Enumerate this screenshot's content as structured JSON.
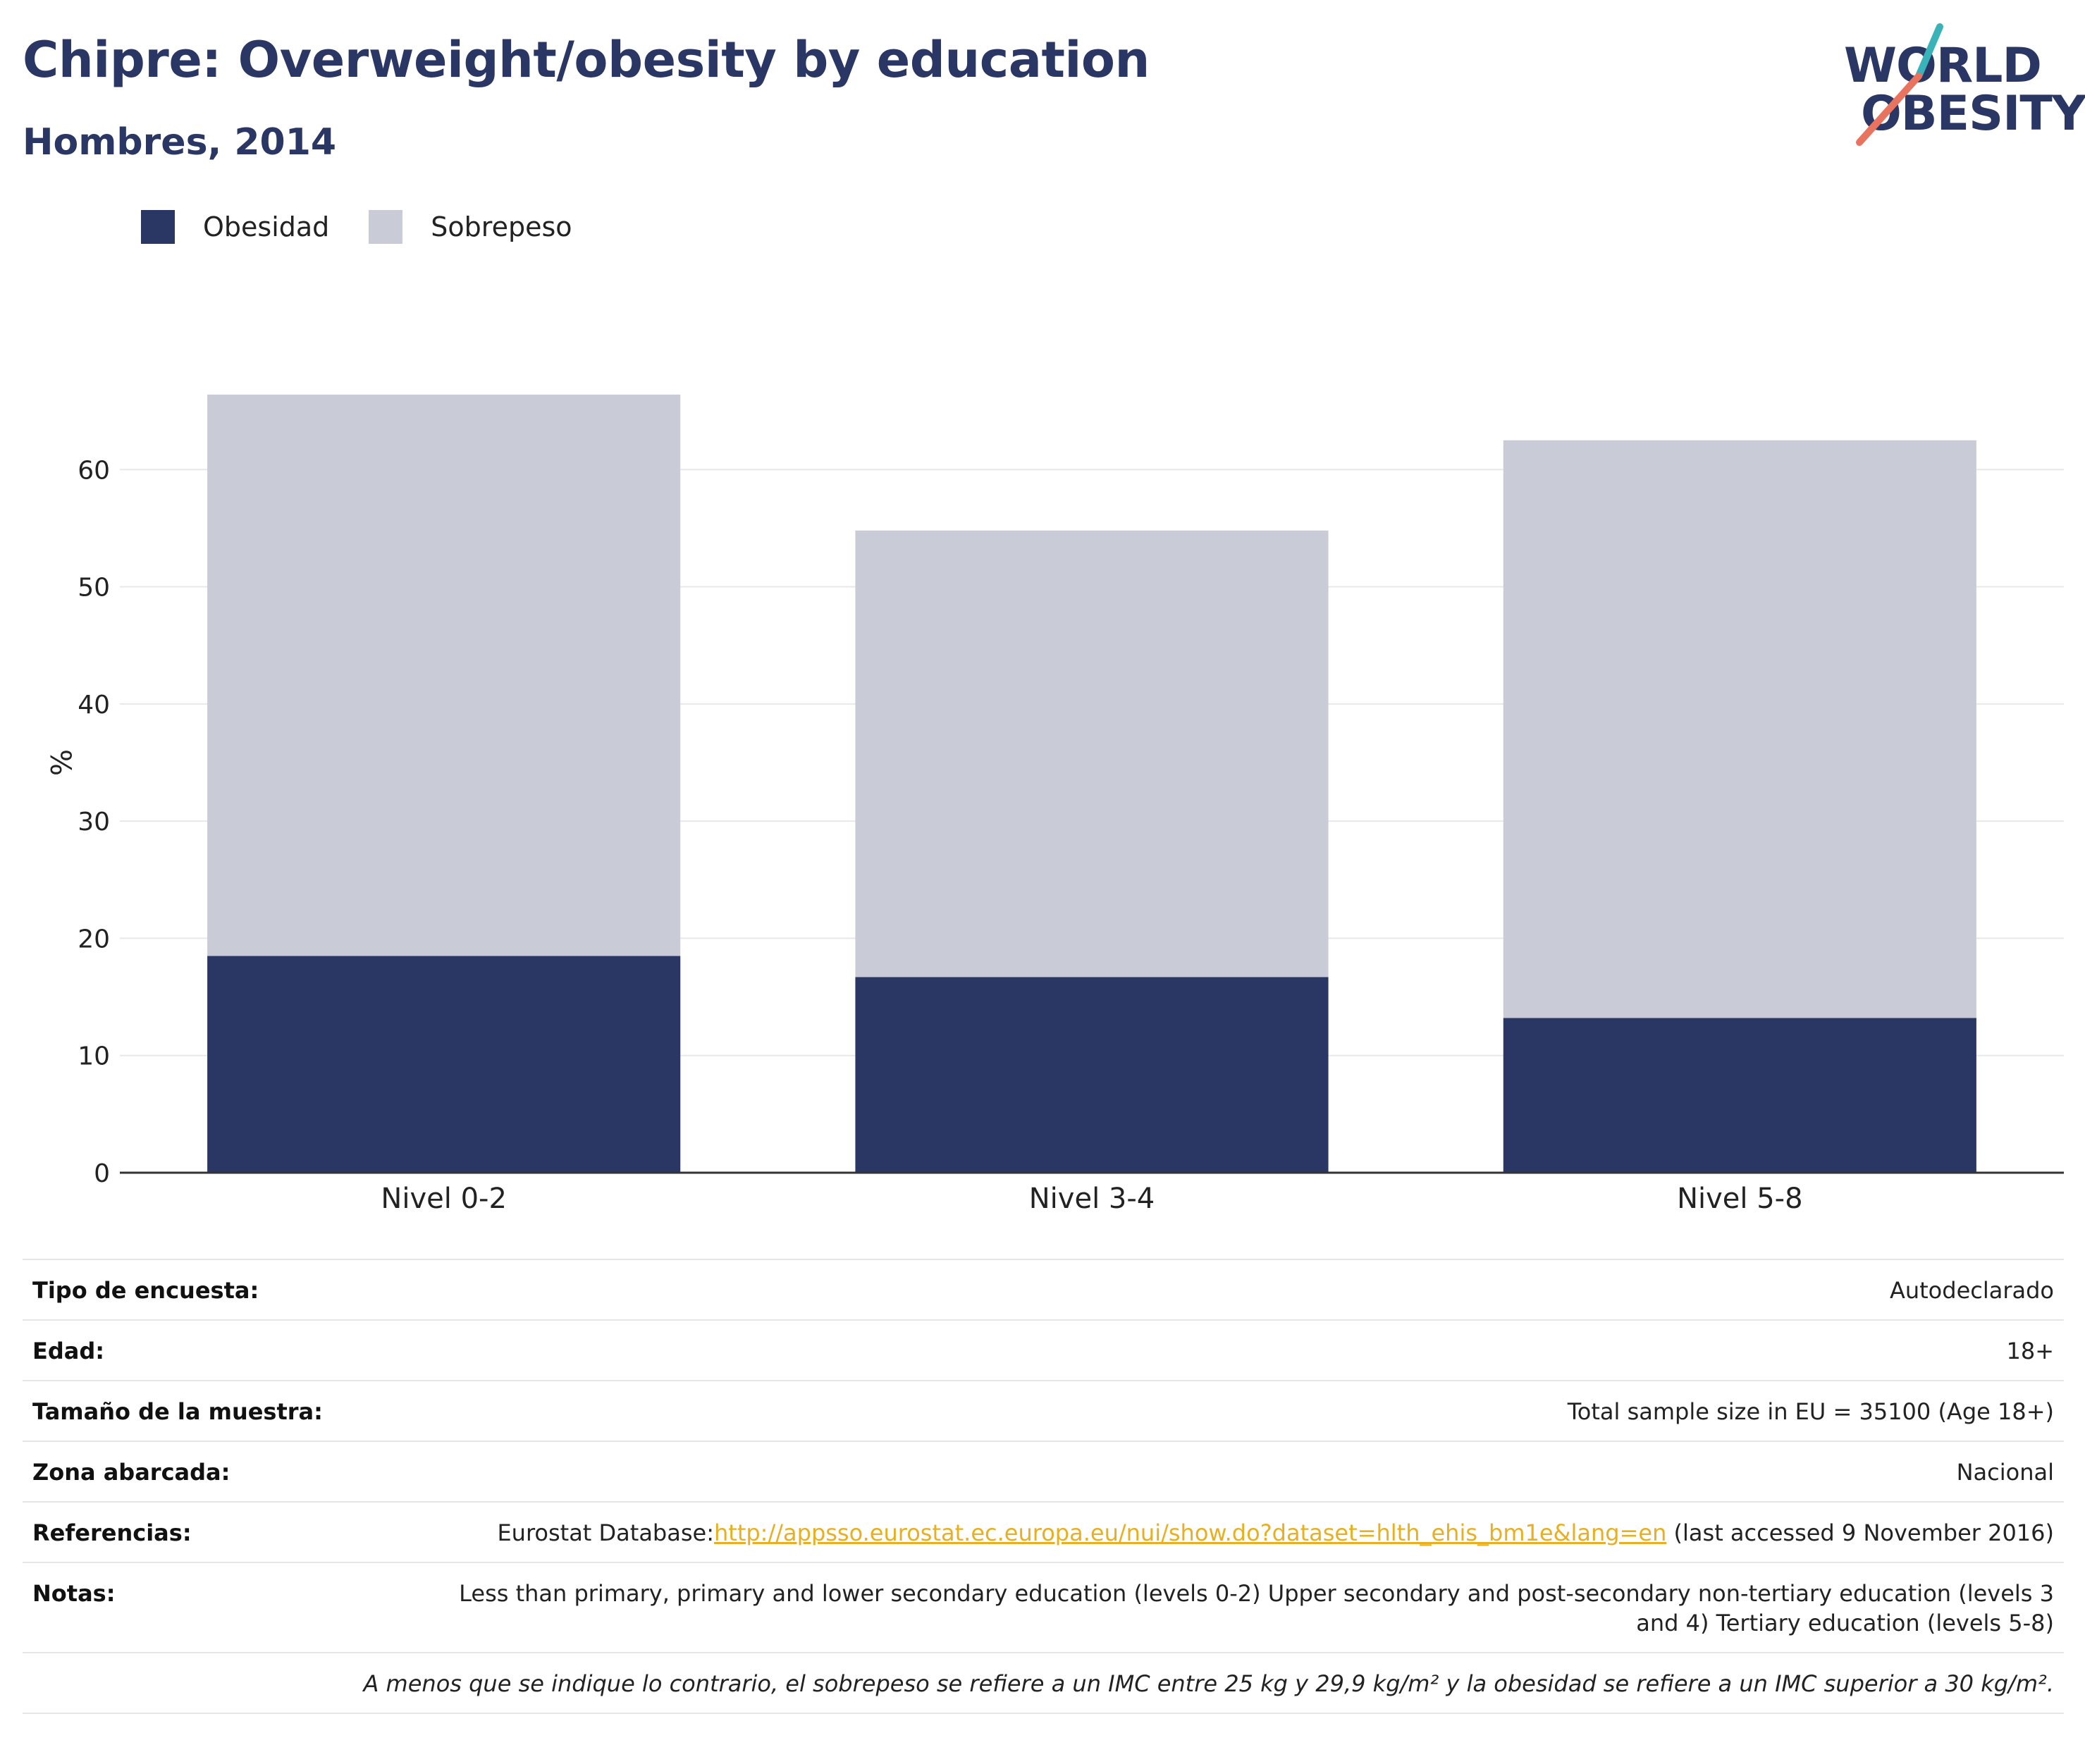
{
  "header": {
    "title": "Chipre: Overweight/obesity by education",
    "subtitle": "Hombres, 2014"
  },
  "logo": {
    "line1": "WORLD",
    "line2": "OBESITY",
    "accent_teal": "#3ab3b8",
    "accent_coral": "#e8735f"
  },
  "colors": {
    "obesity": "#2a3764",
    "overweight": "#c9cbd7",
    "axis": "#333333",
    "grid": "#e8e8e8"
  },
  "chart_data": {
    "type": "bar",
    "stacked": true,
    "title": "Chipre: Overweight/obesity by education",
    "subtitle": "Hombres, 2014",
    "ylabel": "%",
    "xlabel": "",
    "categories": [
      "Nivel 0-2",
      "Nivel 3-4",
      "Nivel 5-8"
    ],
    "series": [
      {
        "name": "Obesidad",
        "values": [
          18.5,
          16.7,
          13.2
        ]
      },
      {
        "name": "Sobrepeso",
        "values": [
          47.9,
          38.1,
          49.3
        ]
      }
    ],
    "ylim": [
      0,
      70
    ],
    "yticks": [
      0,
      10,
      20,
      30,
      40,
      50,
      60
    ],
    "grid": true,
    "legend_position": "top-left"
  },
  "info": {
    "survey_type": {
      "label": "Tipo de encuesta:",
      "value": "Autodeclarado"
    },
    "age": {
      "label": "Edad:",
      "value": "18+"
    },
    "sample": {
      "label": "Tamaño de la muestra:",
      "value": "Total sample size in EU = 35100 (Age 18+)"
    },
    "area": {
      "label": "Zona abarcada:",
      "value": "Nacional"
    },
    "references": {
      "label": "Referencias:",
      "prefix": "Eurostat Database:",
      "link": "http://appsso.eurostat.ec.europa.eu/nui/show.do?dataset=hlth_ehis_bm1e&lang=en",
      "suffix": " (last accessed 9 November 2016)"
    },
    "notes": {
      "label": "Notas:",
      "value": "Less than primary, primary and lower secondary education (levels 0-2) Upper secondary and post-secondary non-tertiary education (levels 3 and 4) Tertiary education (levels 5-8)"
    },
    "footnote": "A menos que se indique lo contrario, el sobrepeso se refiere a un IMC entre 25 kg y 29,9 kg/m² y la obesidad se refiere a un IMC superior a 30 kg/m²."
  }
}
